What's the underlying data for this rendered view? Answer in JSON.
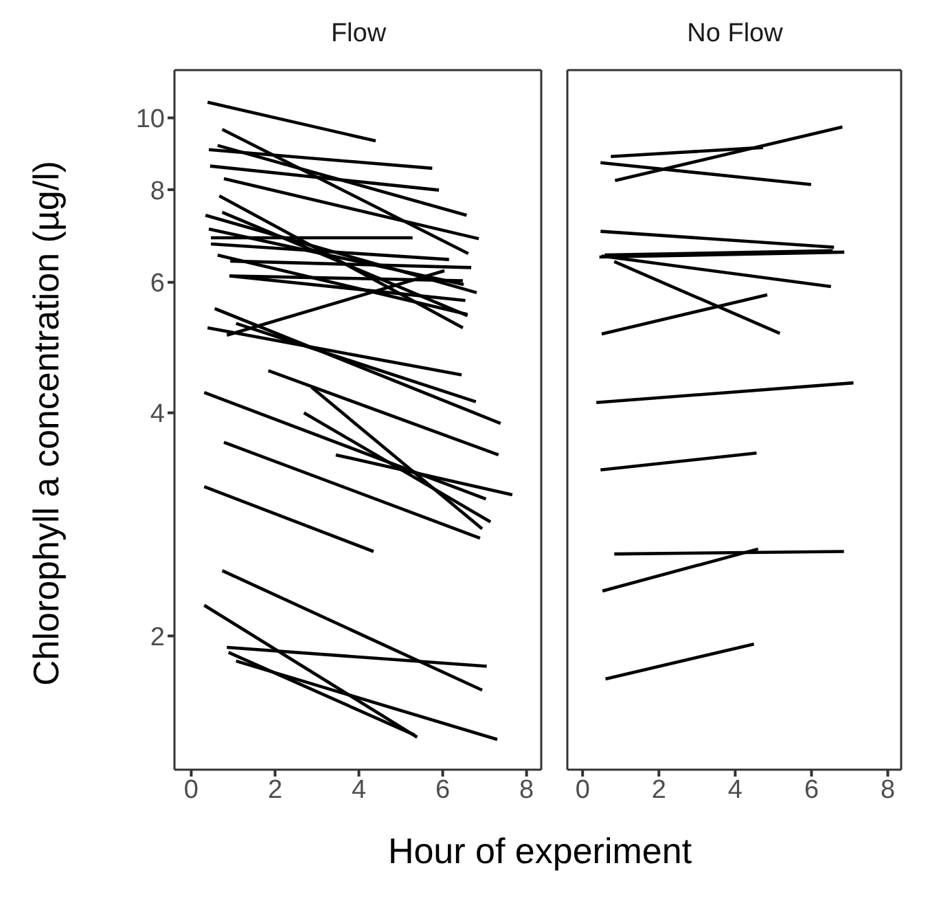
{
  "chart_data": [
    {
      "type": "line",
      "title": "Flow",
      "xlabel": "Hour of experiment",
      "ylabel": "Chlorophyll a concentration (µg/l)",
      "log": "y",
      "marker": "none",
      "xlim": [
        -0.4,
        8.35
      ],
      "xticks": [
        0,
        2,
        4,
        6,
        8
      ],
      "ylim": [
        1.32,
        11.6
      ],
      "yticks": [
        2,
        4,
        6,
        8,
        10
      ],
      "series": [
        {
          "color": "#000000",
          "x": [
            0.39,
            4.4
          ],
          "values": [
            10.5,
            9.31
          ]
        },
        {
          "color": "#000000",
          "x": [
            0.74,
            6.61
          ],
          "values": [
            9.65,
            6.56
          ]
        },
        {
          "color": "#000000",
          "x": [
            0.42,
            5.75
          ],
          "values": [
            9.06,
            8.55
          ]
        },
        {
          "color": "#000000",
          "x": [
            0.63,
            6.57
          ],
          "values": [
            9.18,
            7.39
          ]
        },
        {
          "color": "#000000",
          "x": [
            0.45,
            5.91
          ],
          "values": [
            8.61,
            7.99
          ]
        },
        {
          "color": "#000000",
          "x": [
            0.78,
            6.86
          ],
          "values": [
            8.28,
            6.87
          ]
        },
        {
          "color": "#000000",
          "x": [
            0.67,
            6.48
          ],
          "values": [
            7.85,
            5.21
          ]
        },
        {
          "color": "#000000",
          "x": [
            0.34,
            6.81
          ],
          "values": [
            7.39,
            5.81
          ]
        },
        {
          "color": "#000000",
          "x": [
            0.74,
            6.59
          ],
          "values": [
            7.46,
            5.41
          ]
        },
        {
          "color": "#000000",
          "x": [
            0.47,
            5.28
          ],
          "values": [
            6.89,
            6.89
          ]
        },
        {
          "color": "#000000",
          "x": [
            0.42,
            6.5
          ],
          "values": [
            7.08,
            5.96
          ]
        },
        {
          "color": "#000000",
          "x": [
            0.47,
            6.15
          ],
          "values": [
            6.76,
            6.44
          ]
        },
        {
          "color": "#000000",
          "x": [
            0.63,
            6.59
          ],
          "values": [
            6.53,
            5.43
          ]
        },
        {
          "color": "#000000",
          "x": [
            0.93,
            6.68
          ],
          "values": [
            6.41,
            6.28
          ]
        },
        {
          "color": "#000000",
          "x": [
            0.91,
            6.54
          ],
          "values": [
            6.12,
            5.67
          ]
        },
        {
          "color": "#000000",
          "x": [
            0.93,
            6.48
          ],
          "values": [
            6.12,
            6.03
          ]
        },
        {
          "color": "#000000",
          "x": [
            0.85,
            6.04
          ],
          "values": [
            5.09,
            6.22
          ]
        },
        {
          "color": "#000000",
          "x": [
            0.39,
            6.45
          ],
          "values": [
            5.21,
            4.5
          ]
        },
        {
          "color": "#000000",
          "x": [
            0.56,
            7.38
          ],
          "values": [
            5.53,
            3.87
          ]
        },
        {
          "color": "#000000",
          "x": [
            1.07,
            6.79
          ],
          "values": [
            5.28,
            4.14
          ]
        },
        {
          "color": "#000000",
          "x": [
            1.84,
            7.33
          ],
          "values": [
            4.56,
            3.51
          ]
        },
        {
          "color": "#000000",
          "x": [
            0.31,
            7.03
          ],
          "values": [
            4.26,
            3.06
          ]
        },
        {
          "color": "#000000",
          "x": [
            2.69,
            7.14
          ],
          "values": [
            4.0,
            2.85
          ]
        },
        {
          "color": "#000000",
          "x": [
            2.87,
            6.94
          ],
          "values": [
            4.33,
            2.79
          ]
        },
        {
          "color": "#000000",
          "x": [
            3.45,
            7.66
          ],
          "values": [
            3.51,
            3.1
          ]
        },
        {
          "color": "#000000",
          "x": [
            0.78,
            6.89
          ],
          "values": [
            3.65,
            2.71
          ]
        },
        {
          "color": "#000000",
          "x": [
            0.31,
            4.35
          ],
          "values": [
            3.18,
            2.6
          ]
        },
        {
          "color": "#000000",
          "x": [
            0.74,
            6.94
          ],
          "values": [
            2.45,
            1.69
          ]
        },
        {
          "color": "#000000",
          "x": [
            0.31,
            5.39
          ],
          "values": [
            2.2,
            1.46
          ]
        },
        {
          "color": "#000000",
          "x": [
            0.85,
            7.05
          ],
          "values": [
            1.93,
            1.82
          ]
        },
        {
          "color": "#000000",
          "x": [
            0.89,
            5.33
          ],
          "values": [
            1.9,
            1.47
          ]
        },
        {
          "color": "#000000",
          "x": [
            1.07,
            7.3
          ],
          "values": [
            1.85,
            1.45
          ]
        }
      ]
    },
    {
      "type": "line",
      "title": "No Flow",
      "log": "y",
      "marker": "none",
      "tick_labels": "x",
      "xlim": [
        -0.4,
        8.35
      ],
      "xticks": [
        0,
        2,
        4,
        6,
        8
      ],
      "ylim": [
        1.32,
        11.6
      ],
      "yticks": [
        2,
        4,
        6,
        8,
        10
      ],
      "series": [
        {
          "color": "#000000",
          "x": [
            0.74,
            4.73
          ],
          "values": [
            8.87,
            9.12
          ]
        },
        {
          "color": "#000000",
          "x": [
            0.85,
            6.81
          ],
          "values": [
            8.23,
            9.72
          ]
        },
        {
          "color": "#000000",
          "x": [
            0.47,
            5.99
          ],
          "values": [
            8.7,
            8.13
          ]
        },
        {
          "color": "#000000",
          "x": [
            0.47,
            6.59
          ],
          "values": [
            7.03,
            6.69
          ]
        },
        {
          "color": "#000000",
          "x": [
            0.44,
            6.86
          ],
          "values": [
            6.49,
            6.59
          ]
        },
        {
          "color": "#000000",
          "x": [
            0.58,
            6.56
          ],
          "values": [
            6.53,
            6.62
          ]
        },
        {
          "color": "#000000",
          "x": [
            0.5,
            6.51
          ],
          "values": [
            6.51,
            5.92
          ]
        },
        {
          "color": "#000000",
          "x": [
            0.83,
            5.17
          ],
          "values": [
            6.4,
            5.12
          ]
        },
        {
          "color": "#000000",
          "x": [
            0.5,
            4.84
          ],
          "values": [
            5.11,
            5.77
          ]
        },
        {
          "color": "#000000",
          "x": [
            0.36,
            7.1
          ],
          "values": [
            4.13,
            4.39
          ]
        },
        {
          "color": "#000000",
          "x": [
            0.47,
            4.56
          ],
          "values": [
            3.35,
            3.53
          ]
        },
        {
          "color": "#000000",
          "x": [
            0.83,
            6.85
          ],
          "values": [
            2.58,
            2.6
          ]
        },
        {
          "color": "#000000",
          "x": [
            0.52,
            4.6
          ],
          "values": [
            2.3,
            2.62
          ]
        },
        {
          "color": "#000000",
          "x": [
            0.6,
            4.49
          ],
          "values": [
            1.75,
            1.95
          ]
        }
      ]
    }
  ]
}
